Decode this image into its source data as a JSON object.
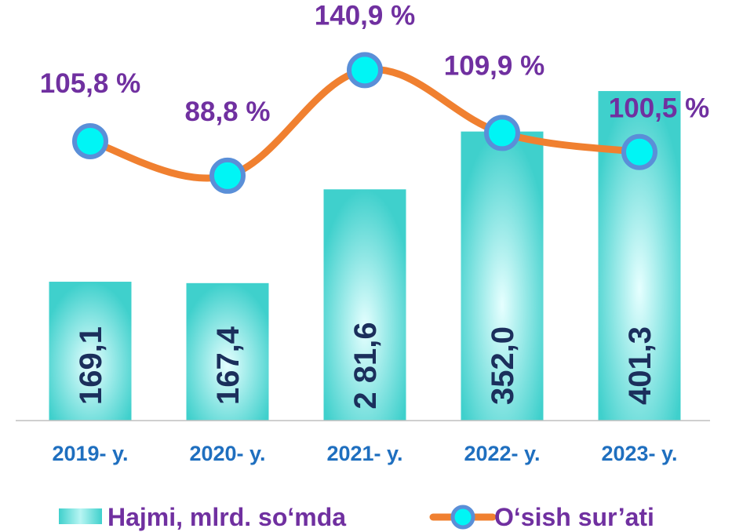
{
  "chart_data": {
    "type": "bar",
    "categories": [
      "2019- y.",
      "2020- y.",
      "2021- y.",
      "2022- y.",
      "2023- y."
    ],
    "series": [
      {
        "name": "Hajmi, mlrd. so‘mda",
        "type": "bar",
        "values": [
          169.1,
          167.4,
          281.6,
          352.0,
          401.3
        ],
        "labels": [
          "169,1",
          "167,4",
          "2 81,6",
          "352,0",
          "401,3"
        ]
      },
      {
        "name": "O‘sish sur’ati",
        "type": "line",
        "values": [
          105.8,
          88.8,
          140.9,
          109.9,
          100.5
        ],
        "labels": [
          "105,8 %",
          "88,8 %",
          "140,9 %",
          "109,9 %",
          "100,5 %"
        ]
      }
    ],
    "bar_ylim": [
      0,
      430
    ],
    "line_ylim": [
      40,
      160
    ],
    "grid": false,
    "legend": "bottom",
    "colors": {
      "bar": "#3fd0cc",
      "bar_light": "#e6ffff",
      "line": "#f08030",
      "marker_fill": "#00f5f5",
      "marker_stroke": "#5a8fd8",
      "bar_label": "#1b2f5c",
      "pct_label": "#7030a0",
      "x_label": "#1f6fbf",
      "axis": "#bfbfbf"
    }
  }
}
